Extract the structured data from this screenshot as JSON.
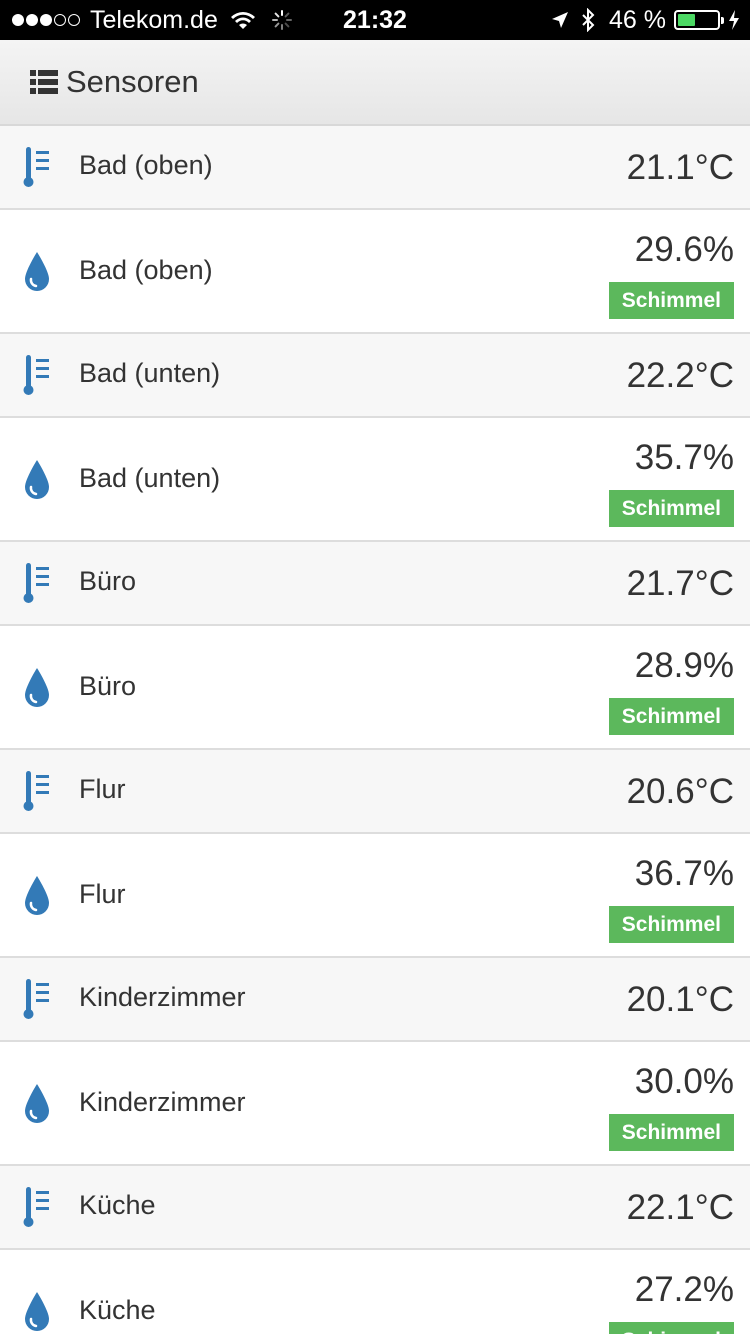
{
  "status_bar": {
    "carrier": "Telekom.de",
    "time": "21:32",
    "battery_percent_label": "46 %",
    "battery_level": 0.46,
    "signal_bars_filled": 3,
    "signal_bars_total": 5
  },
  "header": {
    "icon": "list-icon",
    "title": "Sensoren"
  },
  "colors": {
    "icon_blue": "#337ab7",
    "badge_green": "#5cb85c"
  },
  "sensors": [
    {
      "type": "temperature",
      "icon": "thermometer-icon",
      "name": "Bad (oben)",
      "value": "21.1°C"
    },
    {
      "type": "humidity",
      "icon": "water-drop-icon",
      "name": "Bad (oben)",
      "value": "29.6%",
      "badge": "Schimmel"
    },
    {
      "type": "temperature",
      "icon": "thermometer-icon",
      "name": "Bad (unten)",
      "value": "22.2°C"
    },
    {
      "type": "humidity",
      "icon": "water-drop-icon",
      "name": "Bad (unten)",
      "value": "35.7%",
      "badge": "Schimmel"
    },
    {
      "type": "temperature",
      "icon": "thermometer-icon",
      "name": "Büro",
      "value": "21.7°C"
    },
    {
      "type": "humidity",
      "icon": "water-drop-icon",
      "name": "Büro",
      "value": "28.9%",
      "badge": "Schimmel"
    },
    {
      "type": "temperature",
      "icon": "thermometer-icon",
      "name": "Flur",
      "value": "20.6°C"
    },
    {
      "type": "humidity",
      "icon": "water-drop-icon",
      "name": "Flur",
      "value": "36.7%",
      "badge": "Schimmel"
    },
    {
      "type": "temperature",
      "icon": "thermometer-icon",
      "name": "Kinderzimmer",
      "value": "20.1°C"
    },
    {
      "type": "humidity",
      "icon": "water-drop-icon",
      "name": "Kinderzimmer",
      "value": "30.0%",
      "badge": "Schimmel"
    },
    {
      "type": "temperature",
      "icon": "thermometer-icon",
      "name": "Küche",
      "value": "22.1°C"
    },
    {
      "type": "humidity",
      "icon": "water-drop-icon",
      "name": "Küche",
      "value": "27.2%",
      "badge": "Schimmel"
    }
  ]
}
